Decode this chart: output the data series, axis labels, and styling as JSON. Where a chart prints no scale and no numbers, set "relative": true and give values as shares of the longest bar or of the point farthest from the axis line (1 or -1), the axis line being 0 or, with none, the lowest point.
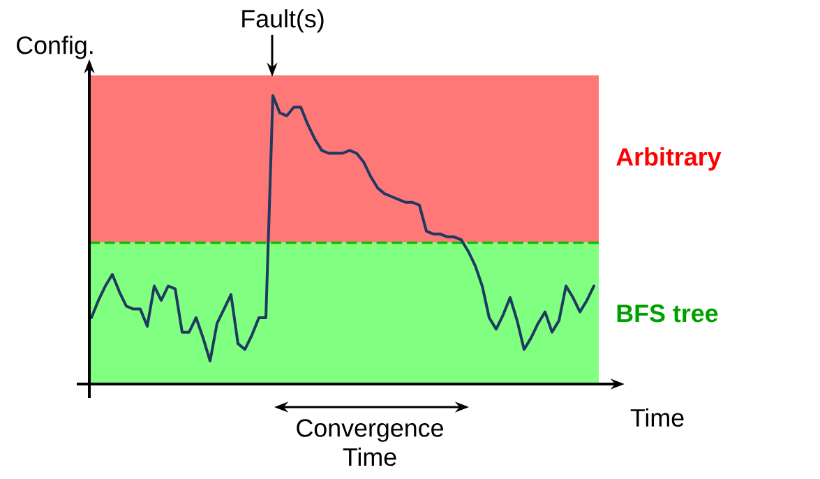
{
  "chart_data": {
    "type": "line",
    "relative": true,
    "xlabel": "Time",
    "ylabel": "Config.",
    "categories": [
      null,
      null,
      null,
      null,
      null,
      null,
      null,
      null,
      null,
      null,
      null,
      null,
      null,
      null,
      null,
      null,
      null,
      null,
      null,
      null,
      null,
      null,
      null,
      null,
      null,
      null,
      null,
      null,
      null,
      null,
      null,
      null,
      null,
      null,
      null,
      null,
      null,
      null,
      null,
      null,
      null,
      null,
      null,
      null,
      null,
      null,
      null,
      null,
      null,
      null,
      null,
      null,
      null,
      null,
      null,
      null,
      null,
      null,
      null,
      null,
      null,
      null,
      null,
      null,
      null,
      null,
      null,
      null,
      null,
      null,
      null,
      null,
      null
    ],
    "values": [
      0.23,
      0.29,
      0.34,
      0.38,
      0.32,
      0.27,
      0.26,
      0.26,
      0.2,
      0.34,
      0.29,
      0.34,
      0.33,
      0.18,
      0.18,
      0.23,
      0.16,
      0.08,
      0.21,
      0.26,
      0.31,
      0.14,
      0.12,
      0.17,
      0.23,
      0.23,
      1,
      0.94,
      0.93,
      0.96,
      0.96,
      0.9,
      0.85,
      0.81,
      0.8,
      0.8,
      0.8,
      0.81,
      0.8,
      0.77,
      0.72,
      0.68,
      0.66,
      0.65,
      0.64,
      0.63,
      0.63,
      0.62,
      0.53,
      0.52,
      0.52,
      0.51,
      0.51,
      0.5,
      0.46,
      0.41,
      0.34,
      0.23,
      0.19,
      0.24,
      0.3,
      0.22,
      0.12,
      0.16,
      0.21,
      0.25,
      0.18,
      0.22,
      0.34,
      0.3,
      0.25,
      0.29,
      0.34
    ],
    "color": "#1f3a60",
    "bands": [
      {
        "axis": "y",
        "from": 0.49,
        "to": 1.07,
        "label": "Arbitrary",
        "color": "#ff7878"
      },
      {
        "axis": "y",
        "from": 0,
        "to": 0.49,
        "label": "BFS tree",
        "color": "#80ff80"
      }
    ],
    "ref_lines": [
      {
        "axis": "y",
        "value": 0.49,
        "color": "#00c000",
        "line_style": "dashed"
      }
    ],
    "annotations": [
      "Fault(s)",
      "Convergence Time"
    ]
  }
}
